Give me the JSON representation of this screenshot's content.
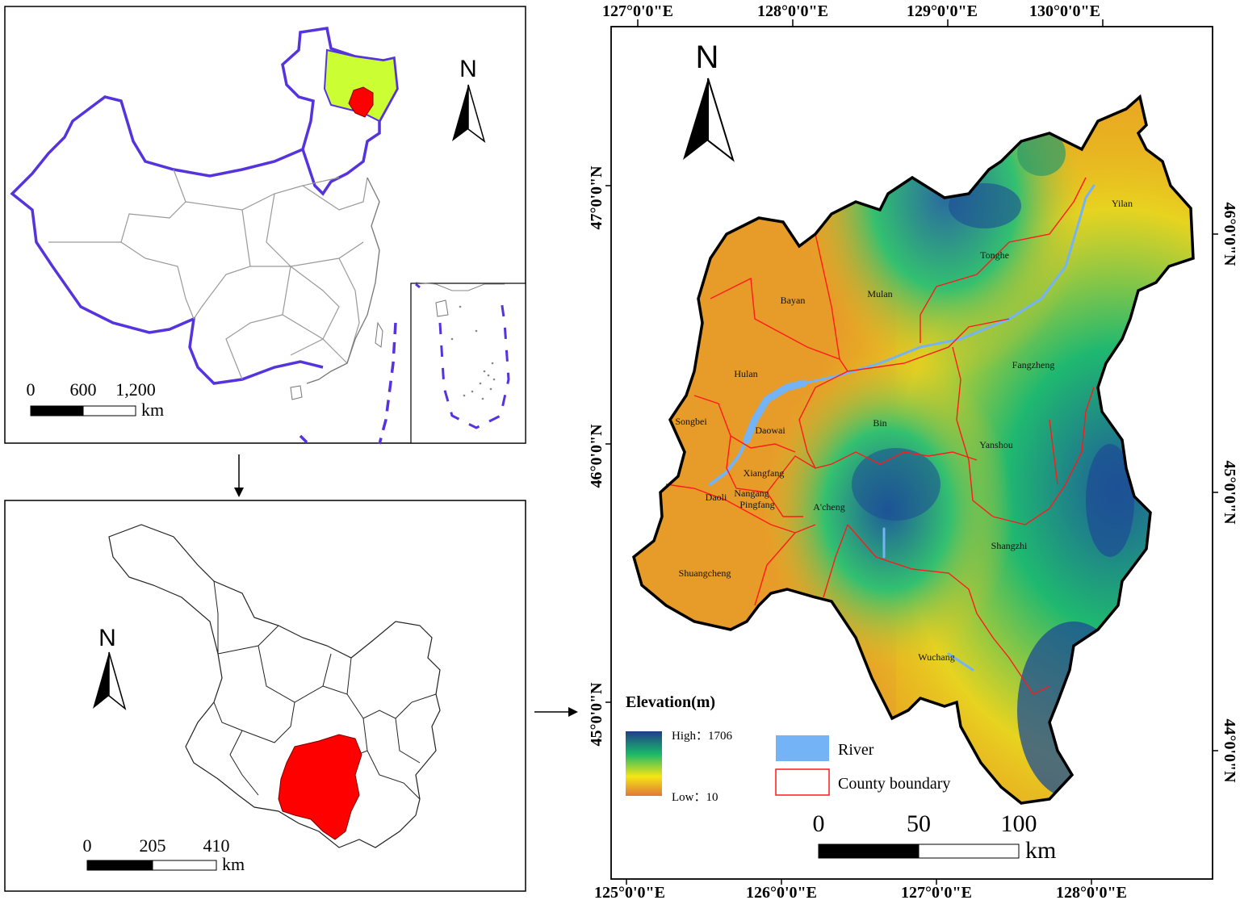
{
  "colors": {
    "china_boundary": "#5533dd",
    "heilongjiang_fill": "#ccff33",
    "harbin_fill": "#ff0000",
    "province_line": "#999999",
    "county_line": "#ff0000",
    "river": "#74b3f5",
    "outline": "#000000",
    "elev_high": "#1f3d8a",
    "elev_mid_high": "#19b86a",
    "elev_mid": "#f5e614",
    "elev_low": "#e07838"
  },
  "panel_china": {
    "north_label": "N",
    "scale_ticks": [
      "0",
      "600",
      "1,200"
    ],
    "scale_unit": "km"
  },
  "panel_province": {
    "north_label": "N",
    "scale_ticks": [
      "0",
      "205",
      "410"
    ],
    "scale_unit": "km"
  },
  "panel_harbin": {
    "north_label": "N",
    "top_lon_labels": [
      "127°0'0\"E",
      "128°0'0\"E",
      "129°0'0\"E",
      "130°0'0\"E"
    ],
    "bottom_lon_labels": [
      "125°0'0\"E",
      "126°0'0\"E",
      "127°0'0\"E",
      "128°0'0\"E"
    ],
    "left_lat_labels": [
      "47°0'0\"N",
      "46°0'0\"N",
      "45°0'0\"N"
    ],
    "right_lat_labels": [
      "46°0'0\"N",
      "45°0'0\"N",
      "44°0'0\"N"
    ],
    "counties": [
      "Yilan",
      "Tonghe",
      "Mulan",
      "Bayan",
      "Fangzheng",
      "Hulan",
      "Bin",
      "Songbei",
      "Daowai",
      "Yanshou",
      "Xiangfang",
      "Nangang",
      "Daoli",
      "Pingfang",
      "A'cheng",
      "Shangzhi",
      "Shuangcheng",
      "Wuchang"
    ],
    "legend": {
      "elevation_title": "Elevation(m)",
      "high_label": "High：1706",
      "low_label": "Low：10",
      "river_label": "River",
      "county_boundary_label": "County boundary"
    },
    "scale_ticks": [
      "0",
      "50",
      "100"
    ],
    "scale_unit": "km"
  }
}
